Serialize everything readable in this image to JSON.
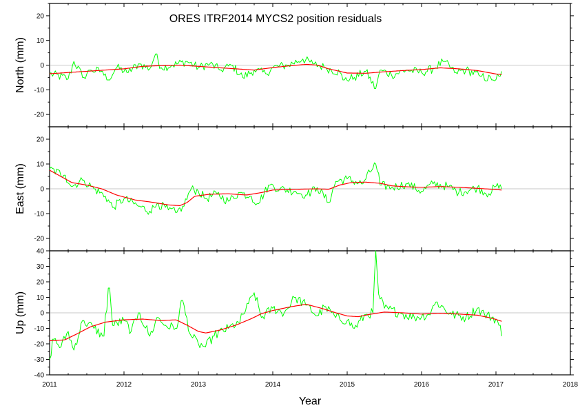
{
  "chart_data": {
    "type": "line",
    "title": "ORES  ITRF2014 MYCS2 position residuals",
    "xlabel": "Year",
    "xlim": [
      2011,
      2018
    ],
    "x_ticks": [
      "2011",
      "2012",
      "2013",
      "2014",
      "2015",
      "2016",
      "2017",
      "2018"
    ],
    "grid": false,
    "colors": {
      "residuals": "#00ff00",
      "smoothed": "#ff0000",
      "zero_line": "#b4b4b4"
    },
    "panels": [
      {
        "ylabel": "North (mm)",
        "ylim": [
          -25,
          25
        ],
        "y_ticks": [
          "-20",
          "-10",
          "0",
          "10",
          "20"
        ],
        "residual_keypoints": [
          [
            2011.0,
            -3.5
          ],
          [
            2011.25,
            -5.5
          ],
          [
            2011.33,
            1.5
          ],
          [
            2011.45,
            -5
          ],
          [
            2011.55,
            -2
          ],
          [
            2011.7,
            -2.5
          ],
          [
            2011.78,
            -6
          ],
          [
            2011.9,
            -1
          ],
          [
            2012.05,
            -3
          ],
          [
            2012.2,
            0.5
          ],
          [
            2012.35,
            -1.5
          ],
          [
            2012.42,
            4.5
          ],
          [
            2012.5,
            -1
          ],
          [
            2012.65,
            0
          ],
          [
            2012.85,
            1.5
          ],
          [
            2013.0,
            -1
          ],
          [
            2013.15,
            0.5
          ],
          [
            2013.3,
            -2
          ],
          [
            2013.45,
            0
          ],
          [
            2013.6,
            -5
          ],
          [
            2013.75,
            -2
          ],
          [
            2013.9,
            -3.5
          ],
          [
            2014.0,
            -1
          ],
          [
            2014.2,
            0
          ],
          [
            2014.4,
            2.5
          ],
          [
            2014.55,
            0.5
          ],
          [
            2014.7,
            -1
          ],
          [
            2014.9,
            -3
          ],
          [
            2014.95,
            -6
          ],
          [
            2015.1,
            -5
          ],
          [
            2015.25,
            -2.5
          ],
          [
            2015.38,
            -9.5
          ],
          [
            2015.45,
            -2
          ],
          [
            2015.6,
            -4
          ],
          [
            2015.8,
            -2
          ],
          [
            2016.0,
            -3
          ],
          [
            2016.15,
            -1.5
          ],
          [
            2016.3,
            1.5
          ],
          [
            2016.45,
            -3
          ],
          [
            2016.6,
            -2
          ],
          [
            2016.8,
            -4.5
          ],
          [
            2016.95,
            -6
          ],
          [
            2017.05,
            -4.5
          ],
          [
            2017.08,
            -2.5
          ]
        ],
        "smoothed_keypoints": [
          [
            2011.0,
            -3.5
          ],
          [
            2011.25,
            -3
          ],
          [
            2011.5,
            -2.5
          ],
          [
            2011.75,
            -2
          ],
          [
            2012.0,
            -1.5
          ],
          [
            2012.25,
            -0.5
          ],
          [
            2012.5,
            -0.2
          ],
          [
            2012.75,
            0
          ],
          [
            2013.0,
            -0.5
          ],
          [
            2013.25,
            -1
          ],
          [
            2013.5,
            -1.5
          ],
          [
            2013.75,
            -2
          ],
          [
            2014.0,
            -1
          ],
          [
            2014.25,
            -0.2
          ],
          [
            2014.45,
            0.3
          ],
          [
            2014.6,
            0
          ],
          [
            2014.75,
            -1.5
          ],
          [
            2015.0,
            -3.2
          ],
          [
            2015.25,
            -3.3
          ],
          [
            2015.5,
            -2.7
          ],
          [
            2015.75,
            -2.2
          ],
          [
            2016.0,
            -1.8
          ],
          [
            2016.25,
            -1.1
          ],
          [
            2016.5,
            -1.5
          ],
          [
            2016.75,
            -2.2
          ],
          [
            2017.0,
            -3.6
          ],
          [
            2017.08,
            -3.8
          ]
        ],
        "residual_noise": 1.8
      },
      {
        "ylabel": "East (mm)",
        "ylim": [
          -25,
          25
        ],
        "y_ticks": [
          "-20",
          "-10",
          "0",
          "10",
          "20"
        ],
        "residual_keypoints": [
          [
            2011.0,
            8
          ],
          [
            2011.2,
            5.5
          ],
          [
            2011.3,
            1
          ],
          [
            2011.45,
            3.5
          ],
          [
            2011.6,
            0
          ],
          [
            2011.75,
            -3
          ],
          [
            2011.85,
            -7.5
          ],
          [
            2012.0,
            -4
          ],
          [
            2012.2,
            -7
          ],
          [
            2012.35,
            -9
          ],
          [
            2012.45,
            -6
          ],
          [
            2012.6,
            -8.5
          ],
          [
            2012.7,
            -9.5
          ],
          [
            2012.8,
            -7
          ],
          [
            2012.9,
            0
          ],
          [
            2013.0,
            -1
          ],
          [
            2013.1,
            -4
          ],
          [
            2013.25,
            -2
          ],
          [
            2013.4,
            -5
          ],
          [
            2013.55,
            -1.5
          ],
          [
            2013.7,
            -3
          ],
          [
            2013.8,
            -6
          ],
          [
            2013.95,
            1.5
          ],
          [
            2014.1,
            0
          ],
          [
            2014.3,
            -1
          ],
          [
            2014.45,
            -2.5
          ],
          [
            2014.6,
            0.5
          ],
          [
            2014.75,
            -5.5
          ],
          [
            2014.85,
            3
          ],
          [
            2015.0,
            4
          ],
          [
            2015.2,
            2
          ],
          [
            2015.38,
            10
          ],
          [
            2015.45,
            1.5
          ],
          [
            2015.6,
            0.5
          ],
          [
            2015.8,
            2
          ],
          [
            2016.0,
            -1
          ],
          [
            2016.15,
            2
          ],
          [
            2016.35,
            1
          ],
          [
            2016.5,
            -1.5
          ],
          [
            2016.75,
            0.5
          ],
          [
            2016.9,
            -2
          ],
          [
            2017.0,
            1
          ],
          [
            2017.08,
            0
          ]
        ],
        "smoothed_keypoints": [
          [
            2011.0,
            7.5
          ],
          [
            2011.15,
            5
          ],
          [
            2011.3,
            2.5
          ],
          [
            2011.5,
            1.5
          ],
          [
            2011.7,
            0
          ],
          [
            2011.9,
            -2.5
          ],
          [
            2012.15,
            -4.5
          ],
          [
            2012.4,
            -5.5
          ],
          [
            2012.6,
            -6.5
          ],
          [
            2012.75,
            -6.8
          ],
          [
            2012.85,
            -5.5
          ],
          [
            2012.95,
            -3
          ],
          [
            2013.15,
            -2.2
          ],
          [
            2013.4,
            -2
          ],
          [
            2013.65,
            -2.5
          ],
          [
            2013.85,
            -1.5
          ],
          [
            2014.0,
            -0.5
          ],
          [
            2014.3,
            -0.2
          ],
          [
            2014.6,
            0
          ],
          [
            2014.75,
            -0.2
          ],
          [
            2014.9,
            1.5
          ],
          [
            2015.05,
            2.5
          ],
          [
            2015.25,
            2.7
          ],
          [
            2015.45,
            2.2
          ],
          [
            2015.6,
            1.2
          ],
          [
            2015.8,
            0.8
          ],
          [
            2016.0,
            0.6
          ],
          [
            2016.25,
            0.9
          ],
          [
            2016.5,
            0.6
          ],
          [
            2016.75,
            0.2
          ],
          [
            2017.0,
            -0.3
          ],
          [
            2017.08,
            -0.5
          ]
        ],
        "residual_noise": 1.8
      },
      {
        "ylabel": "Up (mm)",
        "ylim": [
          -40,
          40
        ],
        "y_ticks": [
          "-40",
          "-30",
          "-20",
          "-10",
          "0",
          "10",
          "20",
          "30",
          "40"
        ],
        "residual_keypoints": [
          [
            2011.0,
            -30
          ],
          [
            2011.05,
            -17
          ],
          [
            2011.15,
            -22
          ],
          [
            2011.25,
            -12
          ],
          [
            2011.32,
            -24
          ],
          [
            2011.45,
            -5
          ],
          [
            2011.6,
            -10
          ],
          [
            2011.72,
            -15
          ],
          [
            2011.8,
            16
          ],
          [
            2011.85,
            -8
          ],
          [
            2012.0,
            -5
          ],
          [
            2012.1,
            -12
          ],
          [
            2012.2,
            0
          ],
          [
            2012.35,
            -15
          ],
          [
            2012.45,
            -3
          ],
          [
            2012.55,
            -8
          ],
          [
            2012.7,
            -10
          ],
          [
            2012.78,
            8
          ],
          [
            2012.9,
            -15
          ],
          [
            2013.0,
            -20
          ],
          [
            2013.1,
            -22
          ],
          [
            2013.2,
            -15
          ],
          [
            2013.4,
            -10
          ],
          [
            2013.55,
            -6
          ],
          [
            2013.68,
            6
          ],
          [
            2013.75,
            13
          ],
          [
            2013.85,
            -3
          ],
          [
            2014.0,
            3
          ],
          [
            2014.15,
            0
          ],
          [
            2014.3,
            10
          ],
          [
            2014.45,
            5
          ],
          [
            2014.6,
            -2
          ],
          [
            2014.7,
            4
          ],
          [
            2014.85,
            -3
          ],
          [
            2015.0,
            -5
          ],
          [
            2015.1,
            -10
          ],
          [
            2015.25,
            -1
          ],
          [
            2015.35,
            0
          ],
          [
            2015.38,
            41
          ],
          [
            2015.42,
            12
          ],
          [
            2015.5,
            3
          ],
          [
            2015.7,
            0
          ],
          [
            2015.9,
            -3
          ],
          [
            2016.1,
            -1
          ],
          [
            2016.2,
            7
          ],
          [
            2016.4,
            -1
          ],
          [
            2016.6,
            -3
          ],
          [
            2016.75,
            3
          ],
          [
            2016.85,
            -1
          ],
          [
            2017.0,
            -4
          ],
          [
            2017.05,
            -8
          ],
          [
            2017.08,
            -15
          ]
        ],
        "smoothed_keypoints": [
          [
            2011.0,
            -18
          ],
          [
            2011.2,
            -17.5
          ],
          [
            2011.35,
            -14
          ],
          [
            2011.55,
            -9
          ],
          [
            2011.75,
            -6
          ],
          [
            2012.0,
            -4.5
          ],
          [
            2012.25,
            -4
          ],
          [
            2012.5,
            -5
          ],
          [
            2012.7,
            -4.5
          ],
          [
            2012.85,
            -8
          ],
          [
            2013.0,
            -12
          ],
          [
            2013.1,
            -13
          ],
          [
            2013.3,
            -11
          ],
          [
            2013.5,
            -8
          ],
          [
            2013.7,
            -4
          ],
          [
            2013.85,
            -0.5
          ],
          [
            2014.0,
            1.5
          ],
          [
            2014.25,
            4
          ],
          [
            2014.45,
            5.5
          ],
          [
            2014.65,
            3
          ],
          [
            2014.85,
            0
          ],
          [
            2015.0,
            -2
          ],
          [
            2015.15,
            -2.5
          ],
          [
            2015.3,
            -1
          ],
          [
            2015.5,
            0.5
          ],
          [
            2015.75,
            0
          ],
          [
            2016.0,
            -0.8
          ],
          [
            2016.25,
            -0.3
          ],
          [
            2016.5,
            -0.8
          ],
          [
            2016.75,
            -1.5
          ],
          [
            2016.95,
            -3.5
          ],
          [
            2017.08,
            -5.5
          ]
        ],
        "residual_noise": 3.2
      }
    ]
  }
}
